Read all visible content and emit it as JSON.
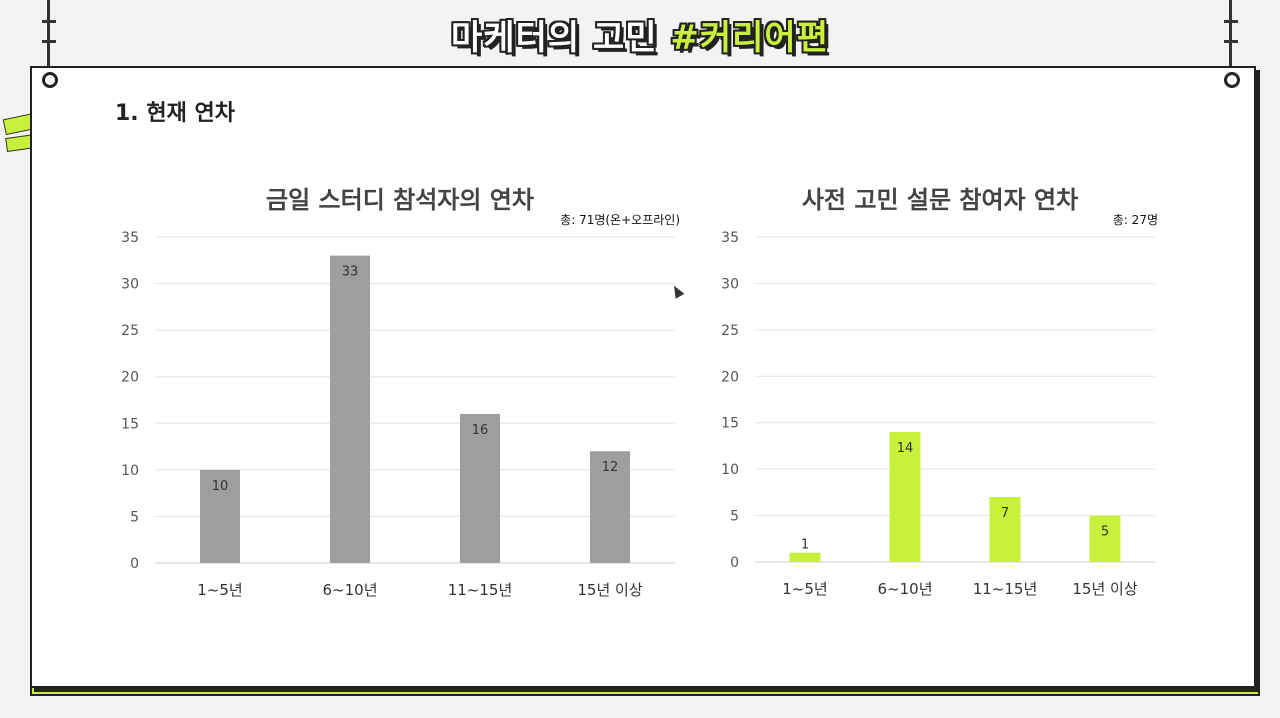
{
  "header": {
    "title_main": "마케터의 고민 ",
    "title_hash": "#커리어편"
  },
  "section": {
    "title": "1. 현재 연차"
  },
  "colors": {
    "accent": "#c8f03c",
    "gray_bar": "#9e9d9f"
  },
  "chart_data": [
    {
      "type": "bar",
      "title": "금일 스터디 참석자의 연차",
      "note": "총: 71명(온+오프라인)",
      "categories": [
        "1~5년",
        "6~10년",
        "11~15년",
        "15년 이상"
      ],
      "values": [
        10,
        33,
        16,
        12
      ],
      "ylim": [
        0,
        35
      ],
      "yticks": [
        0,
        5,
        10,
        15,
        20,
        25,
        30,
        35
      ],
      "grid": true,
      "color": "#9e9d9f"
    },
    {
      "type": "bar",
      "title": "사전 고민 설문 참여자 연차",
      "note": "총: 27명",
      "categories": [
        "1~5년",
        "6~10년",
        "11~15년",
        "15년 이상"
      ],
      "values": [
        1,
        14,
        7,
        5
      ],
      "ylim": [
        0,
        35
      ],
      "yticks": [
        0,
        5,
        10,
        15,
        20,
        25,
        30,
        35
      ],
      "grid": true,
      "color": "#c8f03c"
    }
  ]
}
